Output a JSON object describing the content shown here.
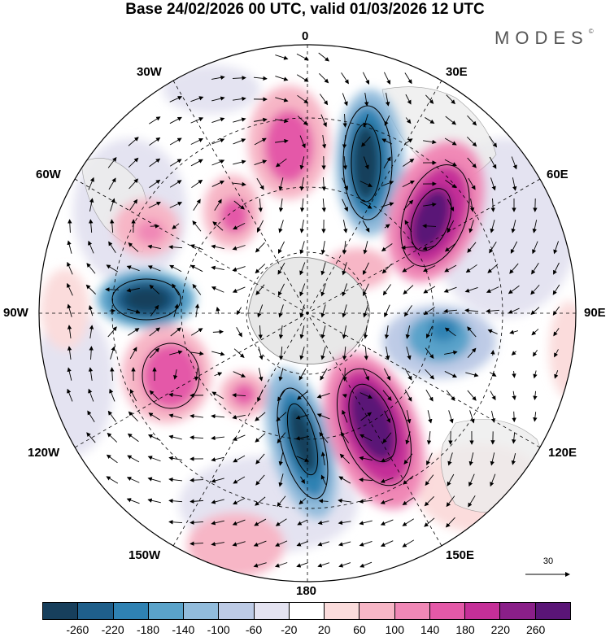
{
  "title": "Base 24/02/2026 00 UTC, valid 01/03/2026 12 UTC",
  "brand": "MODES",
  "brand_mark": "©",
  "longitudes": {
    "lon_0": "0",
    "lon_30e": "30E",
    "lon_60e": "60E",
    "lon_90e": "90E",
    "lon_120e": "120E",
    "lon_150e": "150E",
    "lon_180": "180",
    "lon_150w": "150W",
    "lon_120w": "120W",
    "lon_90w": "90W",
    "lon_60w": "60W",
    "lon_30w": "30W"
  },
  "reference_vector": "30",
  "colorbar": {
    "colors": [
      "#173f5c",
      "#1f5f8b",
      "#2f82b3",
      "#5aa3ca",
      "#92bcdc",
      "#bdcbe6",
      "#e4e3f1",
      "#ffffff",
      "#fbdcdc",
      "#f7b6c6",
      "#f088b6",
      "#e459a8",
      "#c52f98",
      "#8a1f89",
      "#5a1577"
    ],
    "ticks": [
      "-260",
      "-220",
      "-180",
      "-140",
      "-100",
      "-60",
      "-20",
      "20",
      "60",
      "100",
      "140",
      "180",
      "220",
      "260"
    ]
  }
}
